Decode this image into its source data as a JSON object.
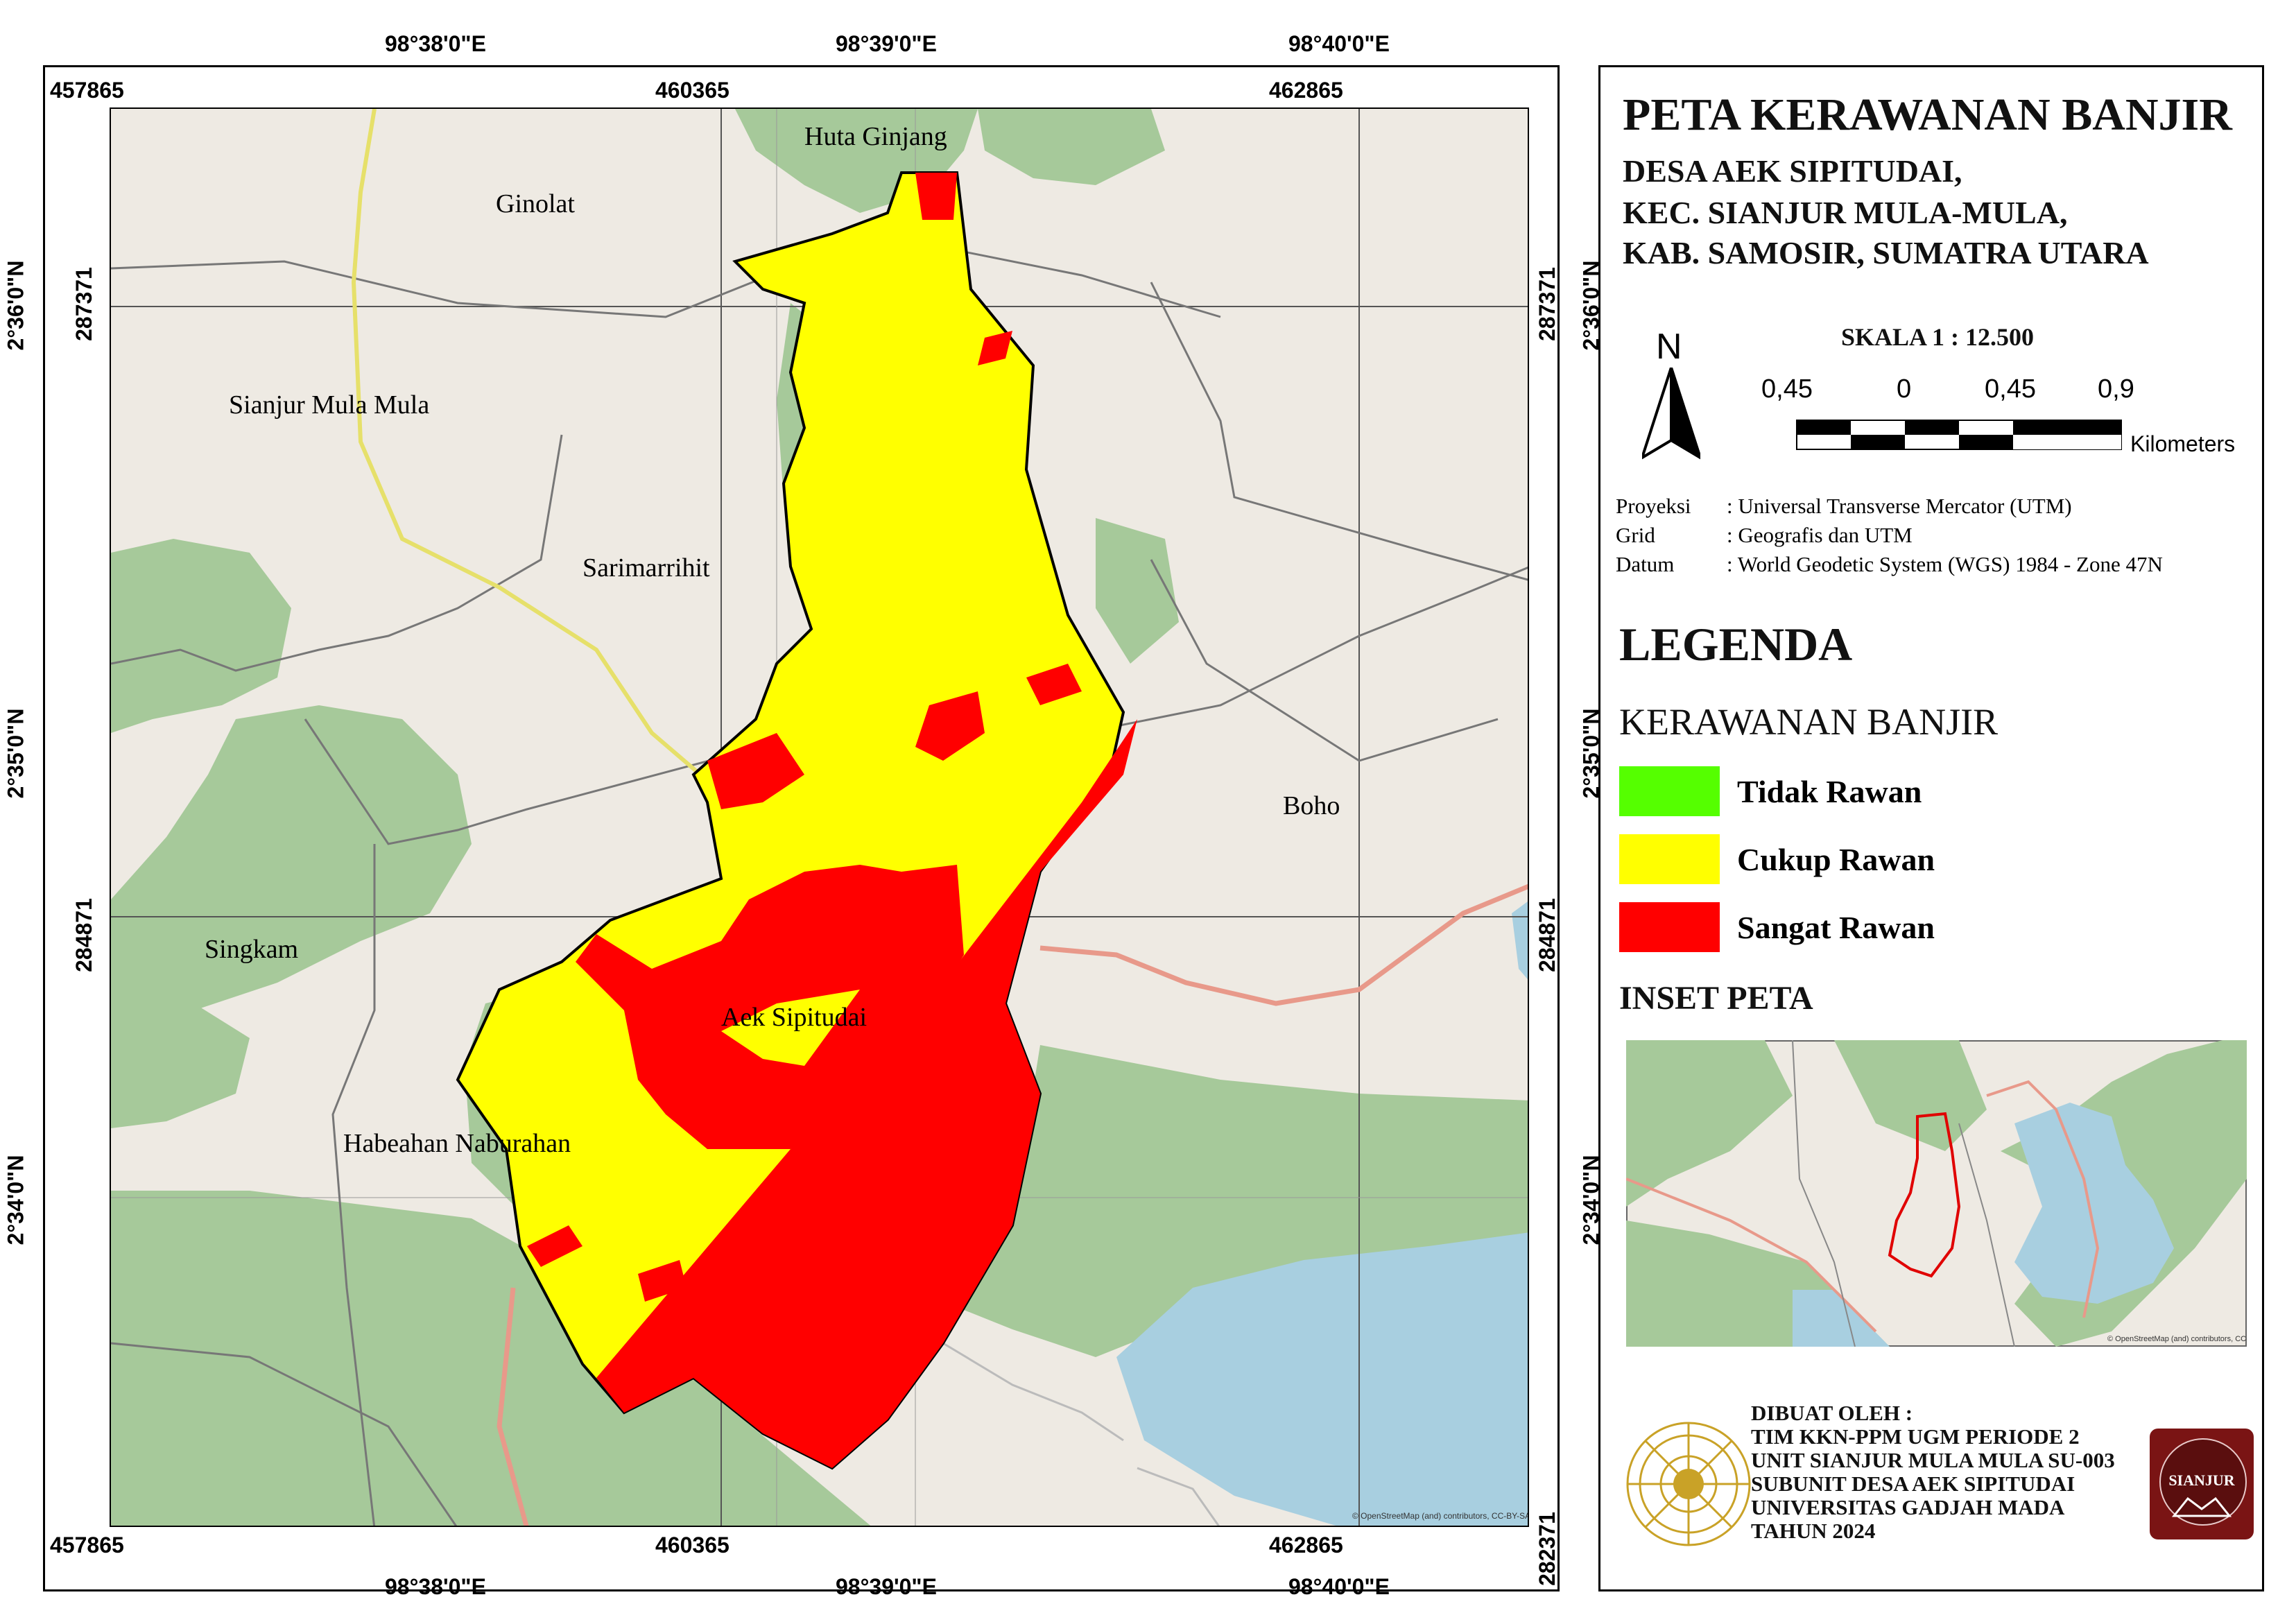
{
  "title": "PETA KERAWANAN BANJIR",
  "subtitle_lines": [
    "DESA AEK SIPITUDAI,",
    "KEC. SIANJUR MULA-MULA,",
    "KAB. SAMOSIR, SUMATRA UTARA"
  ],
  "scale": {
    "text": "SKALA 1 : 12.500",
    "north_letter": "N",
    "bar_labels": [
      "0,45",
      "0",
      "0,45",
      "0,9"
    ],
    "unit": "Kilometers"
  },
  "projection_info": [
    {
      "label": "Proyeksi",
      "value": ": Universal Transverse Mercator (UTM)"
    },
    {
      "label": "Grid",
      "value": ": Geografis dan UTM"
    },
    {
      "label": "Datum",
      "value": ": World Geodetic System (WGS) 1984 - Zone 47N"
    }
  ],
  "legend": {
    "heading": "LEGENDA",
    "category": "KERAWANAN BANJIR",
    "items": [
      {
        "label": "Tidak Rawan",
        "color": "#55ff00"
      },
      {
        "label": "Cukup Rawan",
        "color": "#ffff00"
      },
      {
        "label": "Sangat Rawan",
        "color": "#ff0000"
      }
    ]
  },
  "inset_title": "INSET PETA",
  "credits": {
    "lines": [
      "DIBUAT OLEH :",
      "TIM KKN-PPM UGM PERIODE 2",
      "UNIT SIANJUR MULA MULA SU-003",
      "SUBUNIT DESA AEK SIPITUDAI",
      "UNIVERSITAS GADJAH MADA",
      "TAHUN 2024"
    ],
    "logo_right_text": "SIANJUR"
  },
  "map": {
    "geo_top": [
      "98°38'0\"E",
      "98°39'0\"E",
      "98°40'0\"E"
    ],
    "geo_bottom": [
      "98°38'0\"E",
      "98°39'0\"E",
      "98°40'0\"E"
    ],
    "utm_top": [
      "457865",
      "460365",
      "462865"
    ],
    "utm_bottom": [
      "457865",
      "460365",
      "462865"
    ],
    "geo_left": [
      "2°36'0\"N",
      "2°35'0\"N",
      "2°34'0\"N"
    ],
    "geo_right": [
      "2°36'0\"N",
      "2°35'0\"N",
      "2°34'0\"N"
    ],
    "utm_left": [
      "287371",
      "284871"
    ],
    "utm_right": [
      "287371",
      "284871",
      "282371"
    ],
    "places": [
      "Huta Ginjang",
      "Ginolat",
      "Sianjur Mula Mula",
      "Sarimarrihit",
      "Boho",
      "Singkam",
      "Aek Sipitudai",
      "Habeahan Naburahan"
    ],
    "attribution": "© OpenStreetMap (and) contributors, CC-BY-SA"
  }
}
